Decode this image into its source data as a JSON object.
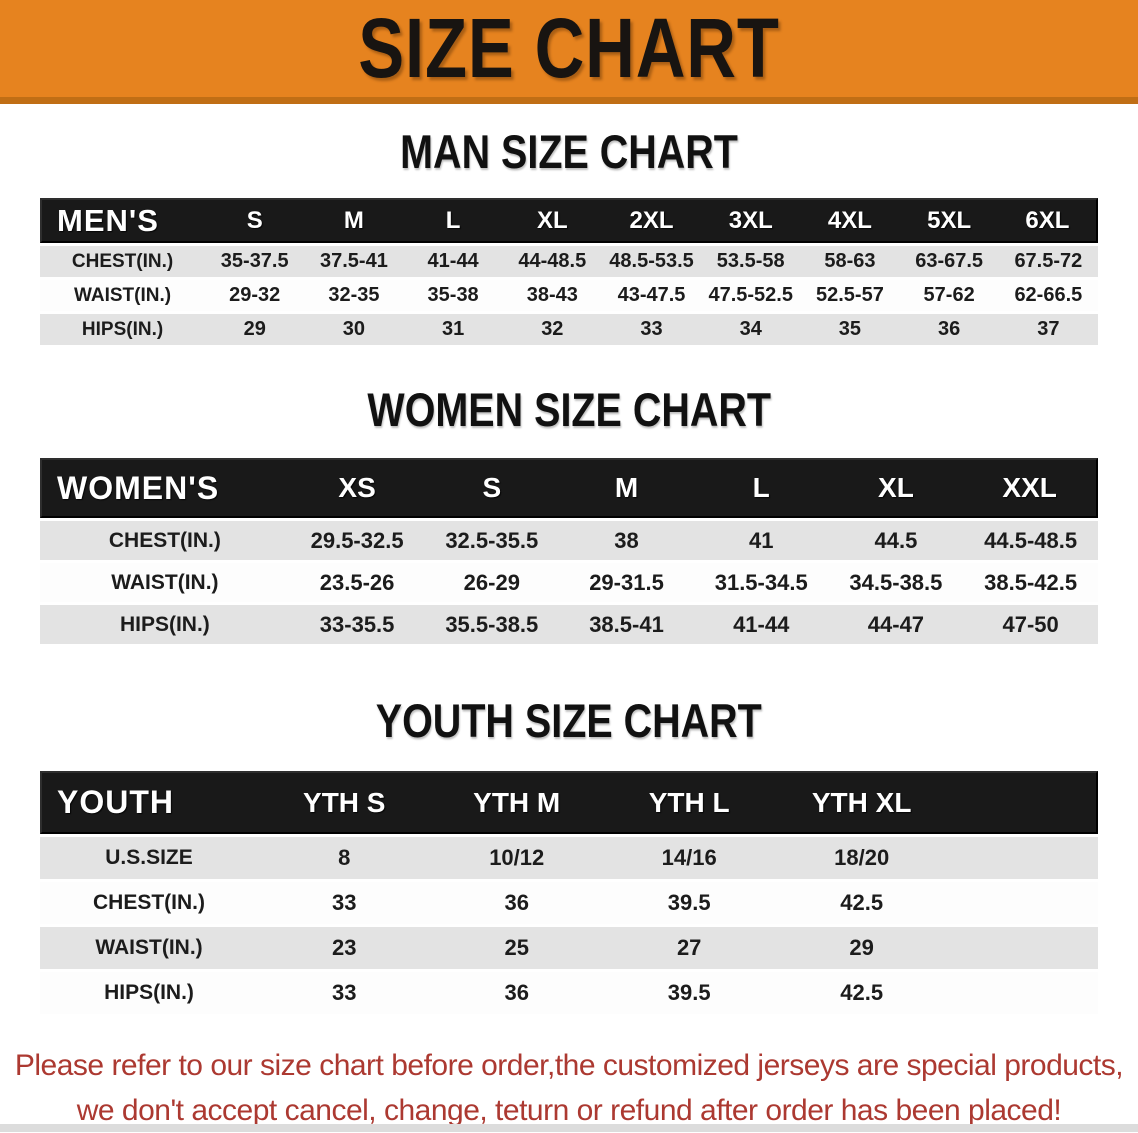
{
  "banner": {
    "title": "SIZE CHART",
    "bg_color": "#E6831F",
    "strip_color": "#C06E15"
  },
  "sections": [
    {
      "title": "MAN SIZE CHART",
      "table": {
        "header_label": "MEN'S",
        "columns": [
          "S",
          "M",
          "L",
          "XL",
          "2XL",
          "3XL",
          "4XL",
          "5XL",
          "6XL"
        ],
        "filler_columns": 0,
        "rows": [
          {
            "label": "CHEST(IN.)",
            "values": [
              "35-37.5",
              "37.5-41",
              "41-44",
              "44-48.5",
              "48.5-53.5",
              "53.5-58",
              "58-63",
              "63-67.5",
              "67.5-72"
            ]
          },
          {
            "label": "WAIST(IN.)",
            "values": [
              "29-32",
              "32-35",
              "35-38",
              "38-43",
              "43-47.5",
              "47.5-52.5",
              "52.5-57",
              "57-62",
              "62-66.5"
            ]
          },
          {
            "label": "HIPS(IN.)",
            "values": [
              "29",
              "30",
              "31",
              "32",
              "33",
              "34",
              "35",
              "36",
              "37"
            ]
          }
        ]
      }
    },
    {
      "title": "WOMEN SIZE CHART",
      "table": {
        "header_label": "WOMEN'S",
        "columns": [
          "XS",
          "S",
          "M",
          "L",
          "XL",
          "XXL"
        ],
        "filler_columns": 0,
        "rows": [
          {
            "label": "CHEST(IN.)",
            "values": [
              "29.5-32.5",
              "32.5-35.5",
              "38",
              "41",
              "44.5",
              "44.5-48.5"
            ]
          },
          {
            "label": "WAIST(IN.)",
            "values": [
              "23.5-26",
              "26-29",
              "29-31.5",
              "31.5-34.5",
              "34.5-38.5",
              "38.5-42.5"
            ]
          },
          {
            "label": "HIPS(IN.)",
            "values": [
              "33-35.5",
              "35.5-38.5",
              "38.5-41",
              "41-44",
              "44-47",
              "47-50"
            ]
          }
        ]
      }
    },
    {
      "title": "YOUTH SIZE CHART",
      "table": {
        "header_label": "YOUTH",
        "columns": [
          "YTH S",
          "YTH M",
          "YTH L",
          "YTH XL"
        ],
        "filler_columns": 1,
        "rows": [
          {
            "label": "U.S.SIZE",
            "values": [
              "8",
              "10/12",
              "14/16",
              "18/20"
            ]
          },
          {
            "label": "CHEST(IN.)",
            "values": [
              "33",
              "36",
              "39.5",
              "42.5"
            ]
          },
          {
            "label": "WAIST(IN.)",
            "values": [
              "23",
              "25",
              "27",
              "29"
            ]
          },
          {
            "label": "HIPS(IN.)",
            "values": [
              "33",
              "36",
              "39.5",
              "42.5"
            ]
          }
        ]
      }
    }
  ],
  "disclaimer": {
    "line1": "Please refer to our size chart before order,the customized jerseys are special products,",
    "line2": "we don't accept cancel, change, teturn or refund after order has been placed!",
    "text_color": "#AC3931"
  },
  "colors": {
    "table_header_bg": "#191919",
    "row_alt_bg": "#E3E3E3",
    "row_bg": "#FDFDFD",
    "bottom_strip": "#DCDCDC"
  }
}
